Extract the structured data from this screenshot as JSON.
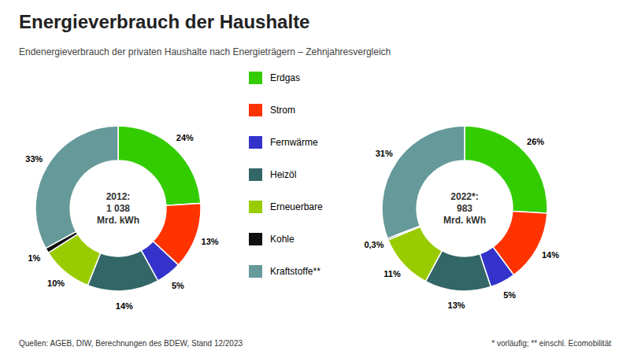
{
  "chart_data": [
    {
      "type": "pie",
      "title": "Energieverbrauch der Haushalte",
      "subtitle": "Endenergieverbrauch der privaten Haushalte nach Energieträgern – Zehnjahresvergleich",
      "categories": [
        "Erdgas",
        "Strom",
        "Fernwärme",
        "Heizöl",
        "Erneuerbare",
        "Kohle",
        "Kraftstoffe**"
      ],
      "colors": [
        "#33cc00",
        "#ff3300",
        "#3333cc",
        "#336666",
        "#99cc00",
        "#111111",
        "#669999"
      ],
      "values": [
        24,
        13,
        5,
        14,
        10,
        1,
        33
      ],
      "value_labels": [
        "24%",
        "13%",
        "5%",
        "14%",
        "10%",
        "1%",
        "33%"
      ],
      "data_labels": true,
      "legend": "right",
      "annotations": [
        "2012:\n1 038\nMrd. kWh",
        "Quellen: AGEB, DIW, Berechnungen des BDEW, Stand 12/2023",
        "* vorläufig; ** einschl. Ecomobilität"
      ]
    },
    {
      "type": "pie",
      "categories": [
        "Erdgas",
        "Strom",
        "Fernwärme",
        "Heizöl",
        "Erneuerbare",
        "Kohle",
        "Kraftstoffe**"
      ],
      "colors": [
        "#33cc00",
        "#ff3300",
        "#3333cc",
        "#336666",
        "#99cc00",
        "#111111",
        "#669999"
      ],
      "values": [
        26,
        14,
        5,
        13,
        11,
        0.3,
        31
      ],
      "value_labels": [
        "26%",
        "14%",
        "5%",
        "13%",
        "11%",
        "0,3%",
        "31%"
      ],
      "data_labels": true,
      "annotations": [
        "2022*:\n983\nMrd. kWh"
      ]
    }
  ]
}
